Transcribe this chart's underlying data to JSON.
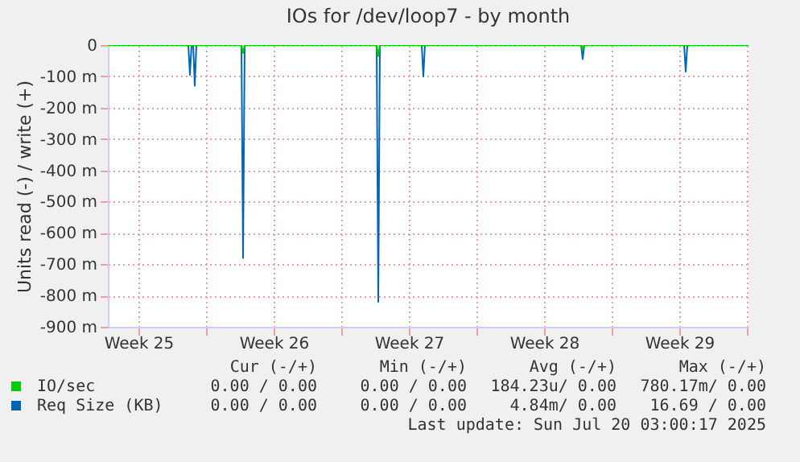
{
  "chart_data": {
    "type": "line",
    "title": "IOs for /dev/loop7 - by month",
    "ylabel": "Units read (-) / write (+)",
    "series": [
      {
        "name": "IO/sec",
        "color": "#00cc00",
        "x": [
          "2025-06-17T22:00",
          "2025-06-24T20:00",
          "2025-06-24T22:00",
          "2025-06-25T00:00",
          "2025-07-01T20:00",
          "2025-07-01T22:00",
          "2025-07-02T00:00",
          "2025-07-12T10:00",
          "2025-07-12T12:00",
          "2025-07-12T14:00",
          "2025-07-21T02:00"
        ],
        "values": [
          0,
          0,
          -25,
          0,
          0,
          -35,
          0,
          0,
          -15,
          0,
          0
        ]
      },
      {
        "name": "Req Size (KB)",
        "color": "#0066b3",
        "x": [
          "2025-06-17T22:00",
          "2025-06-22T02:00",
          "2025-06-22T04:00",
          "2025-06-22T06:00",
          "2025-06-22T08:00",
          "2025-06-22T10:00",
          "2025-06-22T12:00",
          "2025-06-24T20:00",
          "2025-06-24T22:00",
          "2025-06-25T00:00",
          "2025-07-01T20:00",
          "2025-07-01T22:00",
          "2025-07-02T00:00",
          "2025-07-04T04:00",
          "2025-07-04T06:00",
          "2025-07-04T08:00",
          "2025-07-12T10:00",
          "2025-07-12T12:00",
          "2025-07-12T14:00",
          "2025-07-17T18:00",
          "2025-07-17T20:00",
          "2025-07-17T22:00",
          "2025-07-21T02:00"
        ],
        "values": [
          0,
          0,
          -95,
          0,
          0,
          -130,
          0,
          0,
          -680,
          0,
          0,
          -820,
          0,
          0,
          -100,
          0,
          0,
          -45,
          0,
          0,
          -85,
          0,
          0
        ]
      }
    ],
    "xlim": [
      "2025-06-17T22:00",
      "2025-07-21T02:00"
    ],
    "xticks": [
      {
        "value": "2025-06-19T12:00",
        "label": "Week 25"
      },
      {
        "value": "2025-06-23T00:00",
        "label": null
      },
      {
        "value": "2025-06-26T12:00",
        "label": "Week 26"
      },
      {
        "value": "2025-06-30T00:00",
        "label": null
      },
      {
        "value": "2025-07-03T12:00",
        "label": "Week 27"
      },
      {
        "value": "2025-07-07T00:00",
        "label": null
      },
      {
        "value": "2025-07-10T12:00",
        "label": "Week 28"
      },
      {
        "value": "2025-07-14T00:00",
        "label": null
      },
      {
        "value": "2025-07-17T12:00",
        "label": "Week 29"
      },
      {
        "value": "2025-07-21T00:00",
        "label": null
      }
    ],
    "ylim": [
      -900,
      0
    ],
    "yticks": [
      {
        "value": -900,
        "label": "-900 m"
      },
      {
        "value": -800,
        "label": "-800 m"
      },
      {
        "value": -700,
        "label": "-700 m"
      },
      {
        "value": -600,
        "label": "-600 m"
      },
      {
        "value": -500,
        "label": "-500 m"
      },
      {
        "value": -400,
        "label": "-400 m"
      },
      {
        "value": -300,
        "label": "-300 m"
      },
      {
        "value": -200,
        "label": "-200 m"
      },
      {
        "value": -100,
        "label": "-100 m"
      },
      {
        "value": 0,
        "label": "0"
      }
    ],
    "grid": true,
    "legend": "bottom left",
    "annotations": [
      "Cur (-/+)",
      "Min (-/+)",
      "Avg (-/+)",
      "Max (-/+)",
      "0.00 / 0.00",
      "0.00 / 0.00",
      "184.23u/ 0.00",
      "780.17m/ 0.00",
      "0.00 / 0.00",
      "0.00 / 0.00",
      "4.84m/ 0.00",
      "16.69 / 0.00",
      "Last update: Sun Jul 20 03:00:17 2025"
    ]
  }
}
